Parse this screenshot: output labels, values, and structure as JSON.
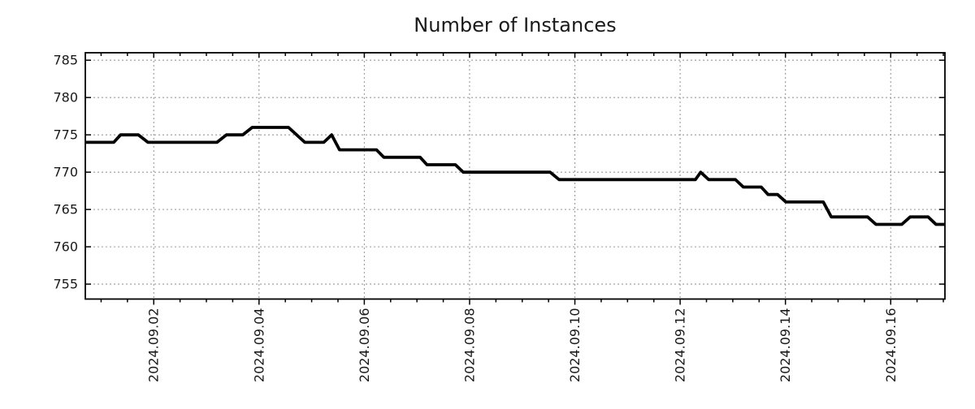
{
  "chart_data": {
    "type": "line",
    "title": "Number of Instances",
    "series_name": "instances",
    "x_unit": "days since 2024-09-02 00:00",
    "xlim": [
      -1.3,
      15.03
    ],
    "ylim": [
      753,
      786
    ],
    "y_ticks": [
      755,
      760,
      765,
      770,
      775,
      780,
      785
    ],
    "x_major_ticks": [
      {
        "t": 0,
        "label": "2024.09.02"
      },
      {
        "t": 2,
        "label": "2024.09.04"
      },
      {
        "t": 4,
        "label": "2024.09.06"
      },
      {
        "t": 6,
        "label": "2024.09.08"
      },
      {
        "t": 8,
        "label": "2024.09.10"
      },
      {
        "t": 10,
        "label": "2024.09.12"
      },
      {
        "t": 12,
        "label": "2024.09.14"
      },
      {
        "t": 14,
        "label": "2024.09.16"
      }
    ],
    "x_minor_step": 0.5,
    "grid": true,
    "legend": false,
    "colors": {
      "line": "#000000",
      "grid": "#999999",
      "frame": "#000000",
      "text": "#1a1a1a",
      "background": "#ffffff"
    },
    "points": [
      [
        -1.3,
        774
      ],
      [
        -0.76,
        774
      ],
      [
        -0.63,
        775
      ],
      [
        -0.29,
        775
      ],
      [
        -0.11,
        774
      ],
      [
        1.2,
        774
      ],
      [
        1.38,
        775
      ],
      [
        1.69,
        775
      ],
      [
        1.87,
        776
      ],
      [
        2.56,
        776
      ],
      [
        2.87,
        774
      ],
      [
        3.23,
        774
      ],
      [
        3.38,
        775
      ],
      [
        3.53,
        773
      ],
      [
        4.23,
        773
      ],
      [
        4.37,
        772
      ],
      [
        5.06,
        772
      ],
      [
        5.19,
        771
      ],
      [
        5.73,
        771
      ],
      [
        5.88,
        770
      ],
      [
        7.53,
        770
      ],
      [
        7.7,
        769
      ],
      [
        10.29,
        769
      ],
      [
        10.39,
        770
      ],
      [
        10.54,
        769
      ],
      [
        11.05,
        769
      ],
      [
        11.2,
        768
      ],
      [
        11.54,
        768
      ],
      [
        11.67,
        767
      ],
      [
        11.85,
        767
      ],
      [
        12.01,
        766
      ],
      [
        12.72,
        766
      ],
      [
        12.87,
        764
      ],
      [
        13.56,
        764
      ],
      [
        13.72,
        763
      ],
      [
        14.21,
        763
      ],
      [
        14.37,
        764
      ],
      [
        14.71,
        764
      ],
      [
        14.86,
        763
      ],
      [
        15.03,
        763
      ]
    ]
  }
}
